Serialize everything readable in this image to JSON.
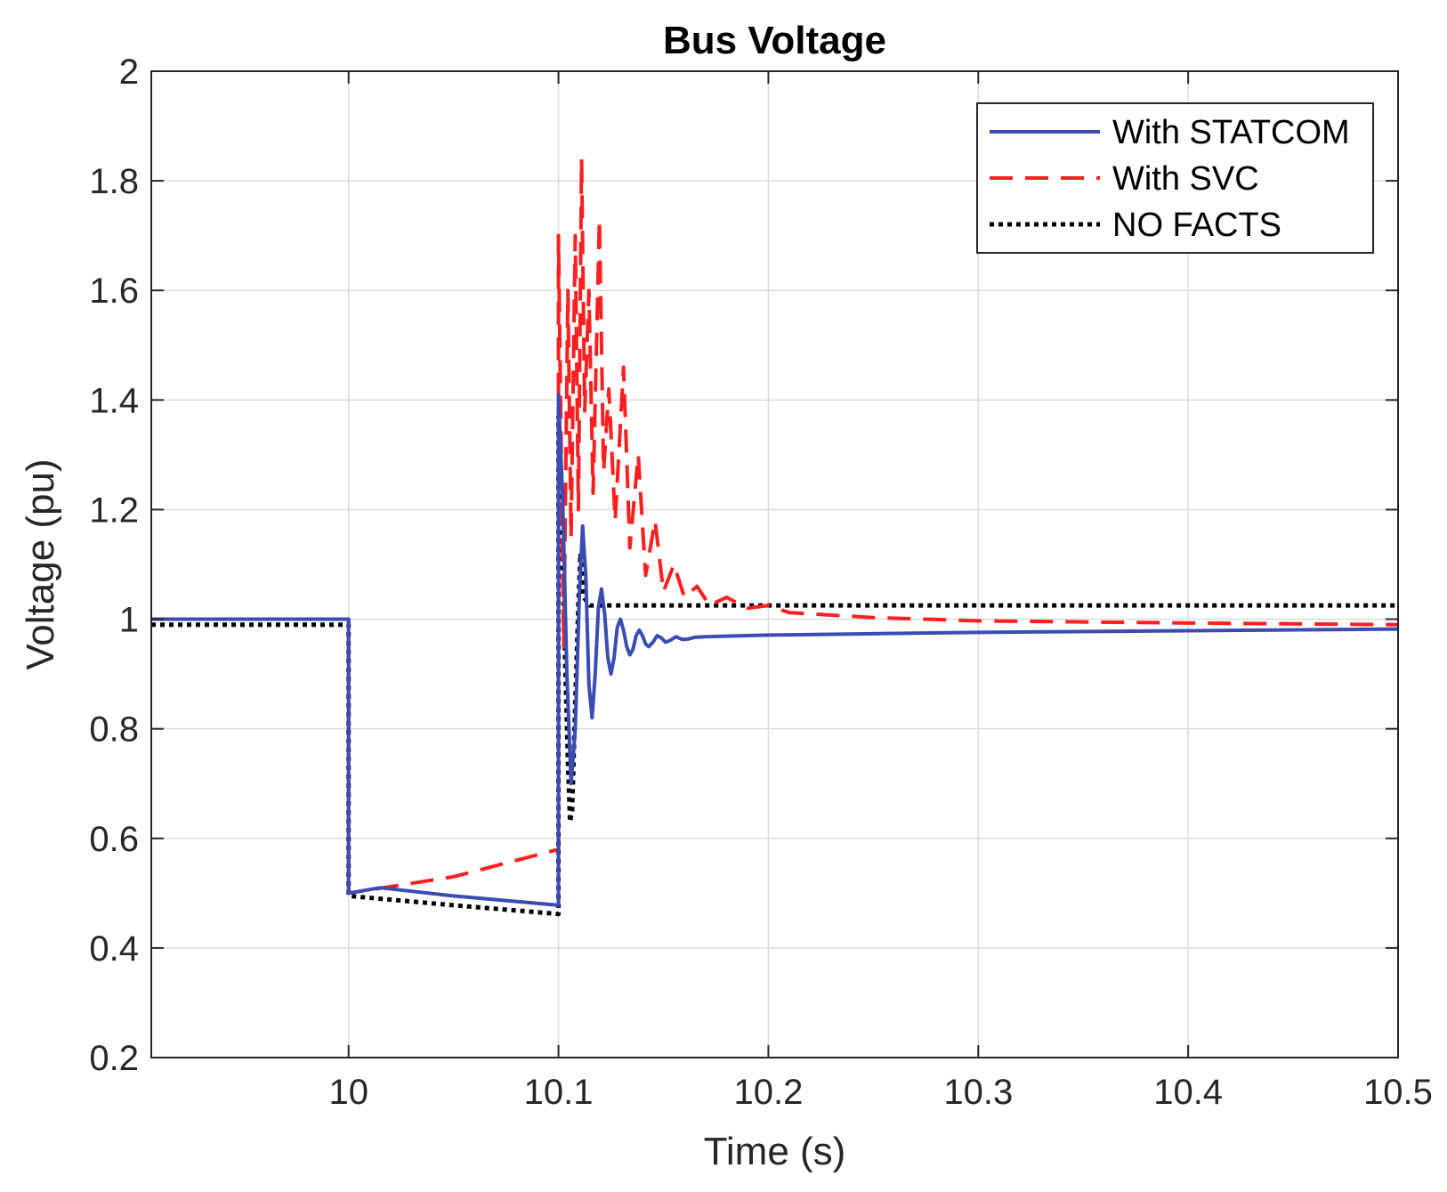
{
  "chart_data": {
    "type": "line",
    "title": "Bus Voltage",
    "xlabel": "Time (s)",
    "ylabel": "Voltage (pu)",
    "xlim": [
      9.906,
      10.5
    ],
    "ylim": [
      0.2,
      2
    ],
    "xticks": [
      10,
      10.1,
      10.2,
      10.3,
      10.4,
      10.5
    ],
    "xtick_labels": [
      "10",
      "10.1",
      "10.2",
      "10.3",
      "10.4",
      "10.5"
    ],
    "yticks": [
      0.2,
      0.4,
      0.6,
      0.8,
      1,
      1.2,
      1.4,
      1.6,
      1.8,
      2
    ],
    "ytick_labels": [
      "0.2",
      "0.4",
      "0.6",
      "0.8",
      "1",
      "1.2",
      "1.4",
      "1.6",
      "1.8",
      "2"
    ],
    "grid": true,
    "legend_position": "top-right",
    "series": [
      {
        "name": "With STATCOM",
        "color": "#3a4cb4",
        "style": "solid",
        "points": [
          [
            9.906,
            1.0
          ],
          [
            10.0,
            1.0
          ],
          [
            10.0,
            0.5
          ],
          [
            10.015,
            0.51
          ],
          [
            10.05,
            0.495
          ],
          [
            10.1,
            0.478
          ],
          [
            10.1,
            1.41
          ],
          [
            10.102,
            1.22
          ],
          [
            10.104,
            0.9
          ],
          [
            10.106,
            0.7
          ],
          [
            10.108,
            0.8
          ],
          [
            10.11,
            1.05
          ],
          [
            10.1115,
            1.17
          ],
          [
            10.113,
            1.08
          ],
          [
            10.1145,
            0.88
          ],
          [
            10.116,
            0.82
          ],
          [
            10.1175,
            0.9
          ],
          [
            10.119,
            1.02
          ],
          [
            10.1205,
            1.055
          ],
          [
            10.122,
            1.01
          ],
          [
            10.1235,
            0.93
          ],
          [
            10.125,
            0.9
          ],
          [
            10.1265,
            0.93
          ],
          [
            10.128,
            0.985
          ],
          [
            10.1295,
            1.0
          ],
          [
            10.131,
            0.98
          ],
          [
            10.1325,
            0.95
          ],
          [
            10.134,
            0.935
          ],
          [
            10.1355,
            0.945
          ],
          [
            10.137,
            0.97
          ],
          [
            10.1385,
            0.98
          ],
          [
            10.14,
            0.97
          ],
          [
            10.1415,
            0.955
          ],
          [
            10.143,
            0.95
          ],
          [
            10.145,
            0.958
          ],
          [
            10.147,
            0.97
          ],
          [
            10.149,
            0.966
          ],
          [
            10.151,
            0.958
          ],
          [
            10.153,
            0.961
          ],
          [
            10.156,
            0.968
          ],
          [
            10.159,
            0.963
          ],
          [
            10.162,
            0.964
          ],
          [
            10.165,
            0.967
          ],
          [
            10.17,
            0.968
          ],
          [
            10.2,
            0.971
          ],
          [
            10.3,
            0.976
          ],
          [
            10.4,
            0.979
          ],
          [
            10.5,
            0.982
          ]
        ]
      },
      {
        "name": "With SVC",
        "color": "#ff1f1f",
        "style": "dashed",
        "points": [
          [
            9.906,
            1.0
          ],
          [
            10.0,
            1.0
          ],
          [
            10.0,
            0.5
          ],
          [
            10.05,
            0.53
          ],
          [
            10.1,
            0.58
          ],
          [
            10.1,
            1.7
          ],
          [
            10.1025,
            0.95
          ],
          [
            10.1045,
            1.6
          ],
          [
            10.106,
            1.15
          ],
          [
            10.108,
            1.7
          ],
          [
            10.1095,
            1.2
          ],
          [
            10.111,
            1.84
          ],
          [
            10.1125,
            1.38
          ],
          [
            10.1145,
            1.6
          ],
          [
            10.1165,
            1.23
          ],
          [
            10.1195,
            1.73
          ],
          [
            10.1215,
            1.27
          ],
          [
            10.124,
            1.42
          ],
          [
            10.127,
            1.18
          ],
          [
            10.131,
            1.46
          ],
          [
            10.134,
            1.13
          ],
          [
            10.138,
            1.3
          ],
          [
            10.1415,
            1.08
          ],
          [
            10.146,
            1.18
          ],
          [
            10.15,
            1.05
          ],
          [
            10.155,
            1.1
          ],
          [
            10.16,
            1.04
          ],
          [
            10.166,
            1.06
          ],
          [
            10.172,
            1.025
          ],
          [
            10.18,
            1.04
          ],
          [
            10.19,
            1.02
          ],
          [
            10.2,
            1.025
          ],
          [
            10.21,
            1.012
          ],
          [
            10.25,
            1.003
          ],
          [
            10.3,
            0.997
          ],
          [
            10.4,
            0.993
          ],
          [
            10.5,
            0.99
          ]
        ]
      },
      {
        "name": "NO FACTS",
        "color": "#000000",
        "style": "dotted",
        "points": [
          [
            9.906,
            0.99
          ],
          [
            10.0,
            0.99
          ],
          [
            10.0,
            0.495
          ],
          [
            10.05,
            0.478
          ],
          [
            10.1,
            0.462
          ],
          [
            10.1,
            1.37
          ],
          [
            10.1015,
            1.2
          ],
          [
            10.103,
            0.95
          ],
          [
            10.1045,
            0.74
          ],
          [
            10.1055,
            0.63
          ],
          [
            10.1065,
            0.65
          ],
          [
            10.108,
            0.85
          ],
          [
            10.1095,
            1.03
          ],
          [
            10.1105,
            1.12
          ],
          [
            10.112,
            1.04
          ],
          [
            10.115,
            1.025
          ],
          [
            10.2,
            1.025
          ],
          [
            10.5,
            1.025
          ]
        ]
      }
    ]
  }
}
